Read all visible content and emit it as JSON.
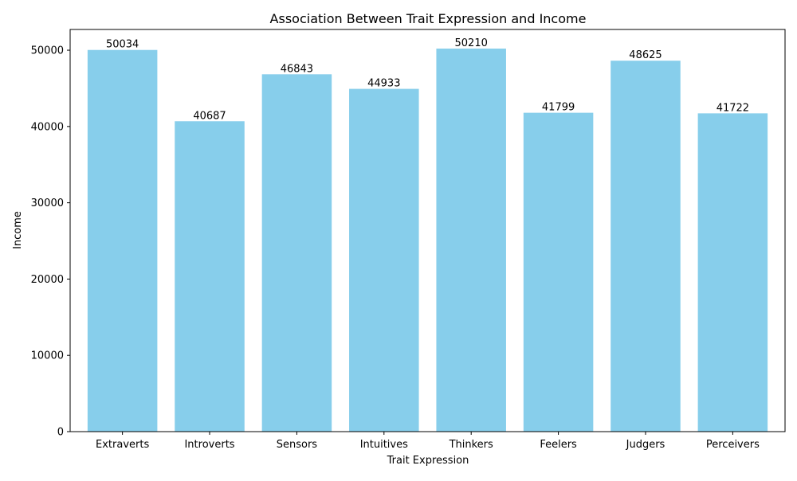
{
  "chart_data": {
    "type": "bar",
    "title": "Association Between Trait Expression and Income",
    "xlabel": "Trait Expression",
    "ylabel": "Income",
    "categories": [
      "Extraverts",
      "Introverts",
      "Sensors",
      "Intuitives",
      "Thinkers",
      "Feelers",
      "Judgers",
      "Perceivers"
    ],
    "values": [
      50034,
      40687,
      46843,
      44933,
      50210,
      41799,
      48625,
      41722
    ],
    "data_labels": [
      "50034",
      "40687",
      "46843",
      "44933",
      "50210",
      "41799",
      "48625",
      "41722"
    ],
    "ylim": [
      0,
      52720
    ],
    "yticks": [
      0,
      10000,
      20000,
      30000,
      40000,
      50000
    ],
    "ytick_labels": [
      "0",
      "10000",
      "20000",
      "30000",
      "40000",
      "50000"
    ],
    "grid": false,
    "legend": "none",
    "bar_color": "#87CEEB"
  }
}
